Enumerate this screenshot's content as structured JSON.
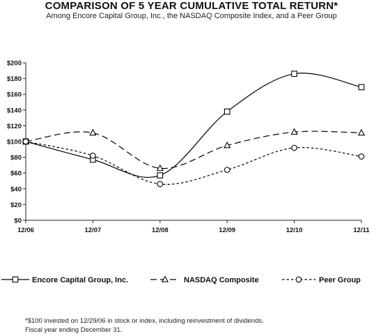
{
  "header": {
    "title": "COMPARISON OF 5 YEAR CUMULATIVE TOTAL RETURN*",
    "subtitle": "Among Encore Capital Group, Inc., the NASDAQ Composite Index, and a Peer Group"
  },
  "chart_data": {
    "type": "line",
    "categories": [
      "12/06",
      "12/07",
      "12/08",
      "12/09",
      "12/10",
      "12/11"
    ],
    "ylim": [
      0,
      200
    ],
    "yticks": [
      0,
      20,
      40,
      60,
      80,
      100,
      120,
      140,
      160,
      180,
      200
    ],
    "ytick_labels": [
      "$0",
      "$20",
      "$40",
      "$60",
      "$80",
      "$100",
      "$120",
      "$140",
      "$160",
      "$180",
      "$200"
    ],
    "grid": false,
    "legend_position": "bottom",
    "series": [
      {
        "name": "Encore Capital Group, Inc.",
        "values": [
          100,
          77,
          57,
          138,
          186,
          169
        ],
        "marker": "square",
        "dash": "solid",
        "color": "#000000"
      },
      {
        "name": "NASDAQ Composite",
        "values": [
          100,
          111,
          66,
          95,
          112,
          111
        ],
        "marker": "triangle",
        "dash": "long-dash",
        "color": "#000000"
      },
      {
        "name": "Peer Group",
        "values": [
          100,
          82,
          46,
          64,
          92,
          81
        ],
        "marker": "circle",
        "dash": "short-dash",
        "color": "#000000"
      }
    ]
  },
  "footnote": {
    "line1": "*$100 invested on 12/29/06 in stock or index, including reinvestment of dividends.",
    "line2": "Fiscal year ending December 31."
  }
}
